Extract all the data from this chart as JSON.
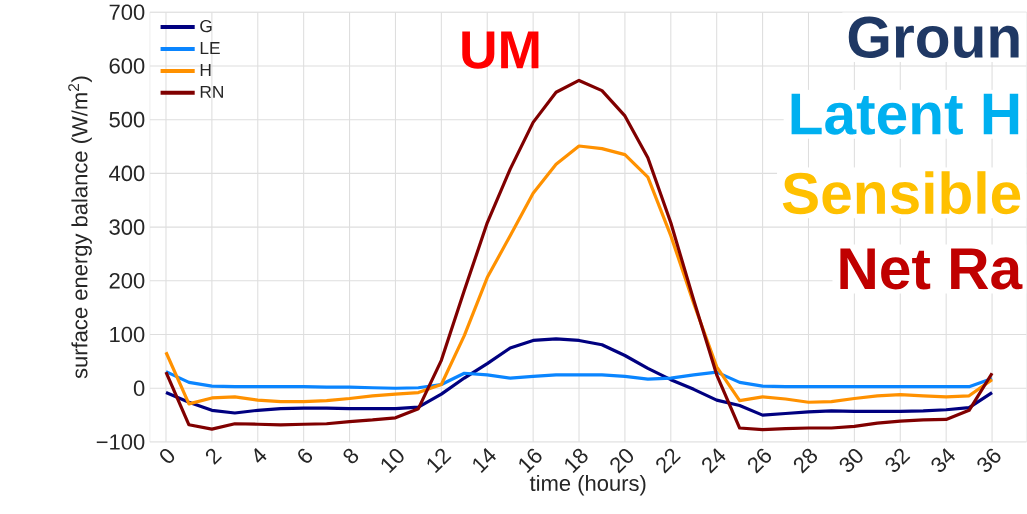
{
  "chart_data": {
    "type": "line",
    "xlabel": "time (hours)",
    "ylabel": "surface energy balance (W/m$^{2}$)",
    "x": [
      0,
      1,
      2,
      3,
      4,
      5,
      6,
      7,
      8,
      9,
      10,
      11,
      12,
      13,
      14,
      15,
      16,
      17,
      18,
      19,
      20,
      21,
      22,
      23,
      24,
      25,
      26,
      27,
      28,
      29,
      30,
      31,
      32,
      33,
      34,
      35,
      36
    ],
    "series": [
      {
        "name": "G",
        "color": "#000080",
        "values": [
          -8,
          -26,
          -41,
          -46,
          -41,
          -38,
          -37,
          -37,
          -38,
          -38,
          -38,
          -35,
          -11,
          19,
          46,
          75,
          89,
          92,
          89,
          81,
          61,
          37,
          16,
          -2,
          -22,
          -32,
          -50,
          -47,
          -44,
          -42,
          -43,
          -43,
          -43,
          -42,
          -40,
          -36,
          -8
        ]
      },
      {
        "name": "LE",
        "color": "#0a85ff",
        "values": [
          31,
          11,
          4,
          3,
          3,
          3,
          3,
          2,
          2,
          1,
          0,
          1,
          7,
          28,
          25,
          19,
          22,
          25,
          25,
          25,
          22,
          17,
          19,
          25,
          30,
          11,
          4,
          3,
          3,
          3,
          3,
          3,
          3,
          3,
          3,
          3,
          18
        ]
      },
      {
        "name": "H",
        "color": "#ff9100",
        "values": [
          67,
          -29,
          -18,
          -16,
          -22,
          -25,
          -25,
          -23,
          -19,
          -14,
          -11,
          -8,
          7,
          98,
          206,
          284,
          363,
          417,
          451,
          446,
          435,
          393,
          284,
          158,
          40,
          -23,
          -16,
          -20,
          -26,
          -25,
          -19,
          -14,
          -12,
          -14,
          -16,
          -14,
          16
        ]
      },
      {
        "name": "RN",
        "color": "#800000",
        "values": [
          30,
          -68,
          -76,
          -66,
          -67,
          -68,
          -67,
          -66,
          -62,
          -59,
          -55,
          -38,
          52,
          182,
          308,
          408,
          495,
          551,
          573,
          554,
          507,
          429,
          308,
          164,
          25,
          -74,
          -77,
          -75,
          -74,
          -74,
          -71,
          -65,
          -61,
          -59,
          -58,
          -41,
          28
        ]
      }
    ],
    "xlim": [
      -0.7,
      37.5
    ],
    "ylim": [
      -100,
      700
    ],
    "xticks": [
      0,
      2,
      4,
      6,
      8,
      10,
      12,
      14,
      16,
      18,
      20,
      22,
      24,
      26,
      28,
      30,
      32,
      34,
      36
    ],
    "yticks": [
      {
        "value": -100,
        "label": "−100"
      },
      0,
      100,
      200,
      300,
      400,
      500,
      600,
      700
    ],
    "grid": true,
    "legend": "top left",
    "line_style": "solid",
    "marker": "none",
    "annotations": [
      "UM",
      "Groun",
      "Latent H",
      "Sensible",
      "Net Ra"
    ]
  }
}
